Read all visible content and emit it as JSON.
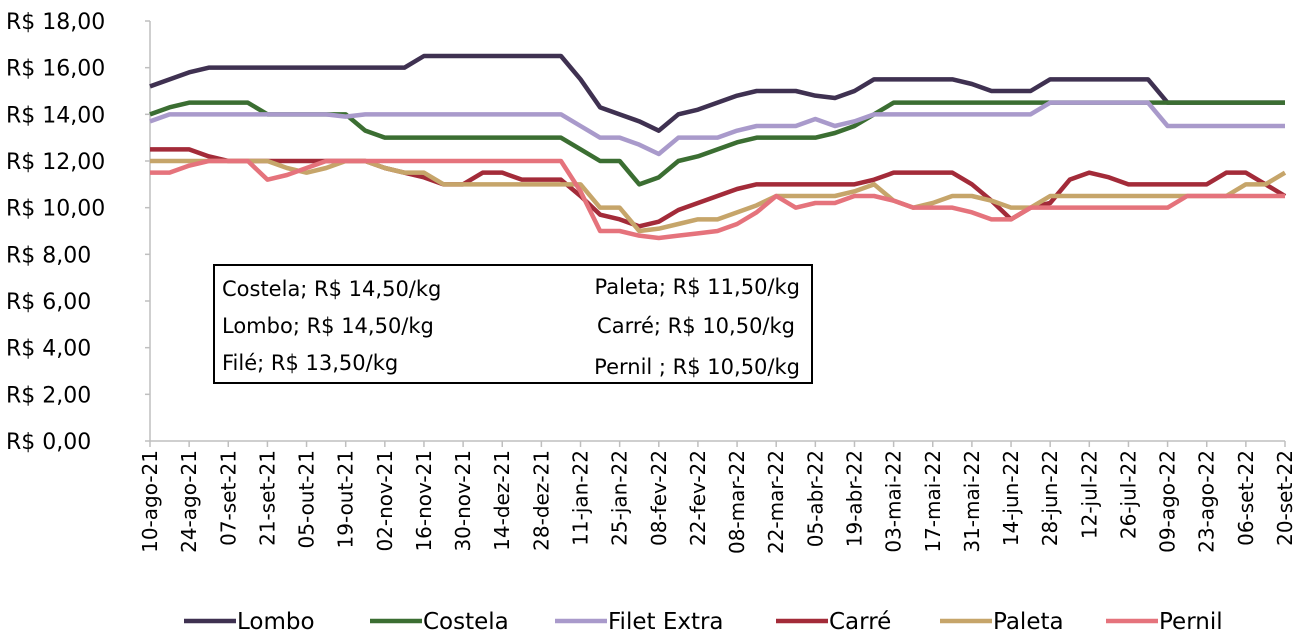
{
  "chart_data": {
    "type": "line",
    "categories": [
      "10-ago-21",
      null,
      "24-ago-21",
      null,
      "07-set-21",
      null,
      "21-set-21",
      null,
      "05-out-21",
      null,
      "19-out-21",
      null,
      "02-nov-21",
      null,
      "16-nov-21",
      null,
      "30-nov-21",
      null,
      "14-dez-21",
      null,
      "28-dez-21",
      null,
      "11-jan-22",
      null,
      "25-jan-22",
      null,
      "08-fev-22",
      null,
      "22-fev-22",
      null,
      "08-mar-22",
      null,
      "22-mar-22",
      null,
      "05-abr-22",
      null,
      "19-abr-22",
      null,
      "03-mai-22",
      null,
      "17-mai-22",
      null,
      "31-mai-22",
      null,
      "14-jun-22",
      null,
      "28-jun-22",
      null,
      "12-jul-22",
      null,
      "26-jul-22",
      null,
      "09-ago-22",
      null,
      "23-ago-22",
      null,
      "06-set-22",
      null,
      "20-set-22"
    ],
    "series": [
      {
        "name": "Lombo",
        "color": "#3f3151",
        "values": [
          15.2,
          15.5,
          15.8,
          16,
          16,
          16,
          16,
          16,
          16,
          16,
          16,
          16,
          16,
          16,
          16.5,
          16.5,
          16.5,
          16.5,
          16.5,
          16.5,
          16.5,
          16.5,
          15.5,
          14.3,
          14,
          13.7,
          13.3,
          14,
          14.2,
          14.5,
          14.8,
          15,
          15,
          15,
          14.8,
          14.7,
          15,
          15.5,
          15.5,
          15.5,
          15.5,
          15.5,
          15.3,
          15,
          15,
          15,
          15.5,
          15.5,
          15.5,
          15.5,
          15.5,
          15.5,
          14.5,
          14.5,
          14.5,
          14.5,
          14.5,
          14.5,
          14.5
        ]
      },
      {
        "name": "Costela",
        "color": "#3b6e32",
        "values": [
          14,
          14.3,
          14.5,
          14.5,
          14.5,
          14.5,
          14,
          14,
          14,
          14,
          14,
          13.3,
          13,
          13,
          13,
          13,
          13,
          13,
          13,
          13,
          13,
          13,
          12.5,
          12,
          12,
          11,
          11.3,
          12,
          12.2,
          12.5,
          12.8,
          13,
          13,
          13,
          13,
          13.2,
          13.5,
          14,
          14.5,
          14.5,
          14.5,
          14.5,
          14.5,
          14.5,
          14.5,
          14.5,
          14.5,
          14.5,
          14.5,
          14.5,
          14.5,
          14.5,
          14.5,
          14.5,
          14.5,
          14.5,
          14.5,
          14.5,
          14.5
        ]
      },
      {
        "name": "Filet Extra",
        "color": "#a99acb",
        "values": [
          13.7,
          14,
          14,
          14,
          14,
          14,
          14,
          14,
          14,
          14,
          13.9,
          14,
          14,
          14,
          14,
          14,
          14,
          14,
          14,
          14,
          14,
          14,
          13.5,
          13,
          13,
          12.7,
          12.3,
          13,
          13,
          13,
          13.3,
          13.5,
          13.5,
          13.5,
          13.8,
          13.5,
          13.7,
          14,
          14,
          14,
          14,
          14,
          14,
          14,
          14,
          14,
          14.5,
          14.5,
          14.5,
          14.5,
          14.5,
          14.5,
          13.5,
          13.5,
          13.5,
          13.5,
          13.5,
          13.5,
          13.5
        ]
      },
      {
        "name": "Carré",
        "color": "#a32b39",
        "values": [
          12.5,
          12.5,
          12.5,
          12.2,
          12,
          12,
          12,
          12,
          12,
          12,
          12,
          12,
          11.7,
          11.5,
          11.3,
          11,
          11,
          11.5,
          11.5,
          11.2,
          11.2,
          11.2,
          10.5,
          9.7,
          9.5,
          9.2,
          9.4,
          9.9,
          10.2,
          10.5,
          10.8,
          11,
          11,
          11,
          11,
          11,
          11,
          11.2,
          11.5,
          11.5,
          11.5,
          11.5,
          11,
          10.3,
          9.5,
          10,
          10.2,
          11.2,
          11.5,
          11.3,
          11,
          11,
          11,
          11,
          11,
          11.5,
          11.5,
          11,
          10.5
        ]
      },
      {
        "name": "Paleta",
        "color": "#c6a56a",
        "values": [
          12,
          12,
          12,
          12,
          12,
          12,
          12,
          11.7,
          11.5,
          11.7,
          12,
          12,
          11.7,
          11.5,
          11.5,
          11,
          11,
          11,
          11,
          11,
          11,
          11,
          11,
          10,
          10,
          9,
          9.1,
          9.3,
          9.5,
          9.5,
          9.8,
          10.1,
          10.5,
          10.5,
          10.5,
          10.5,
          10.7,
          11,
          10.3,
          10,
          10.2,
          10.5,
          10.5,
          10.3,
          10,
          10,
          10.5,
          10.5,
          10.5,
          10.5,
          10.5,
          10.5,
          10.5,
          10.5,
          10.5,
          10.5,
          11,
          11,
          11.5
        ]
      },
      {
        "name": "Pernil",
        "color": "#e5737c",
        "values": [
          11.5,
          11.5,
          11.8,
          12,
          12,
          12,
          11.2,
          11.4,
          11.7,
          12,
          12,
          12,
          12,
          12,
          12,
          12,
          12,
          12,
          12,
          12,
          12,
          12,
          10.7,
          9,
          9,
          8.8,
          8.7,
          8.8,
          8.9,
          9,
          9.3,
          9.8,
          10.5,
          10,
          10.2,
          10.2,
          10.5,
          10.5,
          10.3,
          10,
          10,
          10,
          9.8,
          9.5,
          9.5,
          10,
          10,
          10,
          10,
          10,
          10,
          10,
          10,
          10.5,
          10.5,
          10.5,
          10.5,
          10.5,
          10.5
        ]
      }
    ],
    "ylim": [
      0,
      18
    ],
    "yticks": [
      {
        "value": 0,
        "label": "R$ 0,00"
      },
      {
        "value": 2,
        "label": "R$ 2,00"
      },
      {
        "value": 4,
        "label": "R$ 4,00"
      },
      {
        "value": 6,
        "label": "R$ 6,00"
      },
      {
        "value": 8,
        "label": "R$ 8,00"
      },
      {
        "value": 10,
        "label": "R$ 10,00"
      },
      {
        "value": 12,
        "label": "R$ 12,00"
      },
      {
        "value": 14,
        "label": "R$ 14,00"
      },
      {
        "value": 16,
        "label": "R$ 16,00"
      },
      {
        "value": 18,
        "label": "R$ 18,00"
      }
    ],
    "annotations": [
      "Costela; R$ 14,50/kg",
      "Paleta; R$ 11,50/kg",
      "Lombo; R$ 14,50/kg",
      "Carré; R$ 10,50/kg",
      "Filé; R$ 13,50/kg",
      "Pernil ; R$ 10,50/kg"
    ],
    "legend": "bottom"
  }
}
